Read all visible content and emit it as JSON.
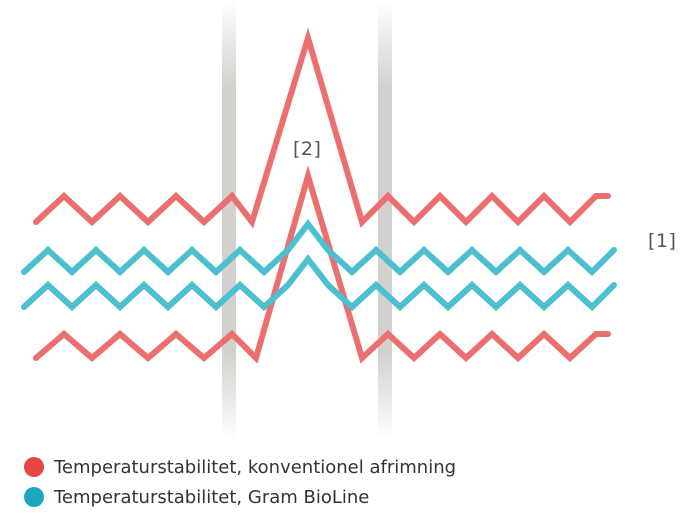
{
  "labels": {
    "callout_1": "[1]",
    "callout_2": "[2]"
  },
  "legend": [
    {
      "label": "Temperaturstabilitet, konventionel afrimning",
      "color": "#e84545"
    },
    {
      "label": "Temperaturstabilitet, Gram BioLine",
      "color": "#1ea6c0"
    }
  ],
  "colors": {
    "conventional_line": "#ec6f6f",
    "bioline_line": "#4cbfd1",
    "band": "#d3d1cd"
  }
}
